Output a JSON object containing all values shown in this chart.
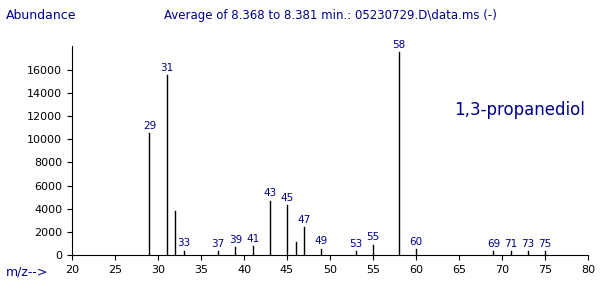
{
  "title": "Average of 8.368 to 8.381 min.: 05230729.D\\data.ms (-)",
  "xlabel": "m/z-->",
  "ylabel": "Abundance",
  "compound_label": "1,3-propanediol",
  "xlim": [
    20,
    80
  ],
  "ylim": [
    0,
    18000
  ],
  "yticks": [
    0,
    2000,
    4000,
    6000,
    8000,
    10000,
    12000,
    14000,
    16000
  ],
  "xticks": [
    20,
    25,
    30,
    35,
    40,
    45,
    50,
    55,
    60,
    65,
    70,
    75,
    80
  ],
  "peaks": [
    {
      "mz": 29,
      "intensity": 10500
    },
    {
      "mz": 31,
      "intensity": 15500
    },
    {
      "mz": 32,
      "intensity": 3800
    },
    {
      "mz": 33,
      "intensity": 400
    },
    {
      "mz": 37,
      "intensity": 350
    },
    {
      "mz": 39,
      "intensity": 700
    },
    {
      "mz": 41,
      "intensity": 800
    },
    {
      "mz": 43,
      "intensity": 4700
    },
    {
      "mz": 45,
      "intensity": 4300
    },
    {
      "mz": 46,
      "intensity": 1100
    },
    {
      "mz": 47,
      "intensity": 2400
    },
    {
      "mz": 49,
      "intensity": 550
    },
    {
      "mz": 53,
      "intensity": 350
    },
    {
      "mz": 55,
      "intensity": 900
    },
    {
      "mz": 58,
      "intensity": 17500
    },
    {
      "mz": 60,
      "intensity": 500
    },
    {
      "mz": 69,
      "intensity": 350
    },
    {
      "mz": 71,
      "intensity": 350
    },
    {
      "mz": 73,
      "intensity": 350
    },
    {
      "mz": 75,
      "intensity": 350
    }
  ],
  "label_peaks": [
    29,
    31,
    33,
    37,
    39,
    41,
    43,
    45,
    47,
    49,
    53,
    55,
    58,
    60,
    69,
    71,
    73,
    75
  ],
  "bar_color": "#000000",
  "text_color": "#00008B",
  "title_color": "#00008B",
  "ylabel_color": "#00008B",
  "xlabel_color": "#00008B",
  "bg_color": "#ffffff",
  "title_fontsize": 8.5,
  "label_fontsize": 7.5,
  "axis_label_fontsize": 9,
  "tick_fontsize": 8,
  "compound_fontsize": 12
}
